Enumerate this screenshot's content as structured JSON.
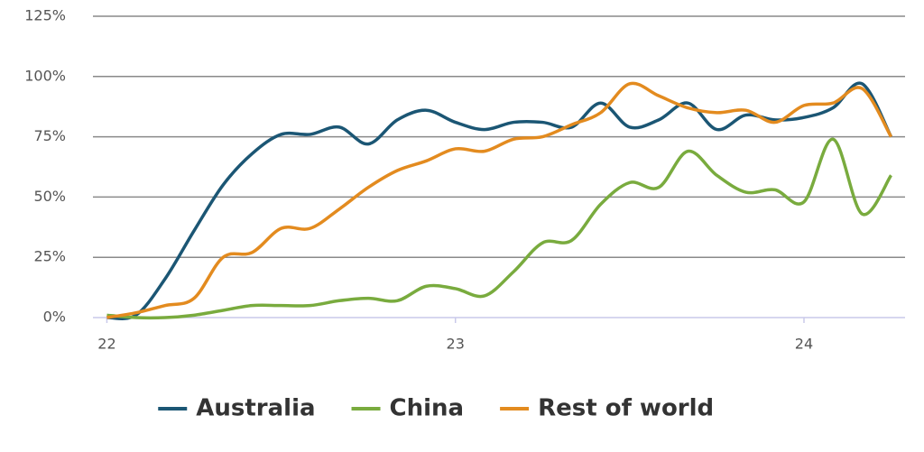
{
  "chart_data": {
    "type": "line",
    "x": [
      22,
      22.0833,
      22.1667,
      22.25,
      22.3333,
      22.4167,
      22.5,
      22.5833,
      22.6667,
      22.75,
      22.8333,
      22.9167,
      23,
      23.0833,
      23.1667,
      23.25,
      23.3333,
      23.4167,
      23.5,
      23.5833,
      23.6667,
      23.75,
      23.8333,
      23.9167,
      24,
      24.0833,
      24.1667,
      24.25
    ],
    "series": [
      {
        "name": "Australia",
        "color": "#1b5674",
        "values": [
          0,
          1,
          16,
          36,
          55,
          68,
          76,
          76,
          79,
          72,
          82,
          86,
          81,
          78,
          81,
          81,
          79,
          89,
          79,
          82,
          89,
          78,
          84,
          82,
          83,
          87,
          97,
          75
        ]
      },
      {
        "name": "China",
        "color": "#79ab3e",
        "values": [
          1,
          0,
          0,
          1,
          3,
          5,
          5,
          5,
          7,
          8,
          7,
          13,
          12,
          9,
          19,
          31,
          32,
          47,
          56,
          54,
          69,
          59,
          52,
          53,
          48,
          74,
          43,
          59
        ]
      },
      {
        "name": "Rest of world",
        "color": "#e38b1f",
        "values": [
          0,
          2,
          5,
          8,
          25,
          27,
          37,
          37,
          45,
          54,
          61,
          65,
          70,
          69,
          74,
          75,
          80,
          85,
          97,
          92,
          87,
          85,
          86,
          81,
          88,
          89,
          95,
          75
        ]
      }
    ],
    "xlim": [
      21.96,
      24.29
    ],
    "xticks": [
      22,
      23,
      24
    ],
    "ylim": [
      0,
      125
    ],
    "yticks": [
      {
        "value": 0,
        "label": "0%"
      },
      {
        "value": 25,
        "label": "25%"
      },
      {
        "value": 50,
        "label": "50%"
      },
      {
        "value": 75,
        "label": "75%"
      },
      {
        "value": 100,
        "label": "100%"
      },
      {
        "value": 125,
        "label": "125%"
      }
    ],
    "grid": true
  }
}
